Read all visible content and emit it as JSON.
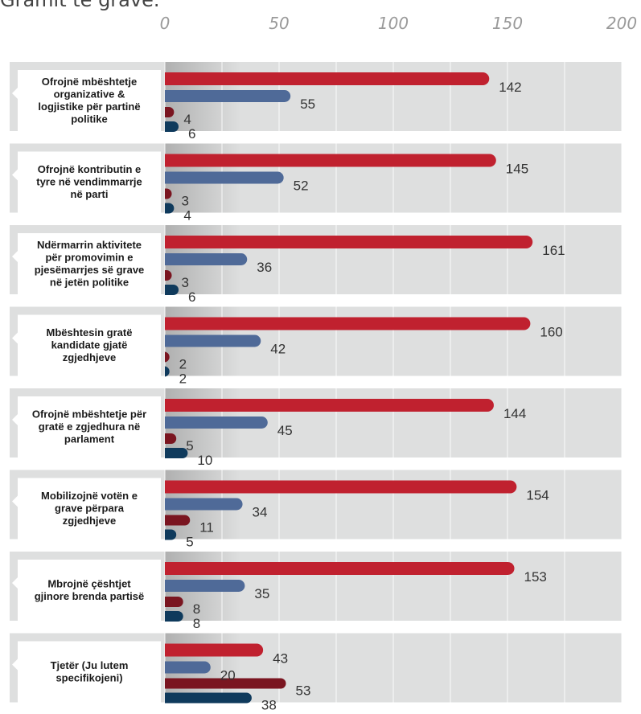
{
  "header": {
    "title_fragment": "Gramit të gravë."
  },
  "chart_data": {
    "type": "bar",
    "orientation": "horizontal",
    "xlim": [
      0,
      200
    ],
    "xticks": [
      0,
      50,
      100,
      150,
      200
    ],
    "categories": [
      [
        "Ofrojnë mbështetje",
        "organizative &",
        "logjistike për partinë",
        "politike"
      ],
      [
        "Ofrojnë kontributin e",
        "tyre në vendimmarrje",
        "në parti"
      ],
      [
        "Ndërmarrin aktivitete",
        "për promovimin e",
        "pjesëmarrjes së grave",
        "në jetën politike"
      ],
      [
        "Mbështesin gratë",
        "kandidate gjatë",
        "zgjedhjeve"
      ],
      [
        "Ofrojnë mbështetje për",
        "gratë e zgjedhura në",
        "parlament"
      ],
      [
        "Mobilizojnë votën e",
        "grave përpara",
        "zgjedhjeve"
      ],
      [
        "Mbrojnë çështjet",
        "gjinore brenda partisë"
      ],
      [
        "Tjetër (Ju lutem",
        "specifikojeni)"
      ]
    ],
    "series": [
      {
        "values": [
          142,
          145,
          161,
          160,
          144,
          154,
          153,
          43
        ],
        "color": "#c0212f"
      },
      {
        "values": [
          55,
          52,
          36,
          42,
          45,
          34,
          35,
          20
        ],
        "color": "#4f6a98"
      },
      {
        "values": [
          4,
          3,
          3,
          2,
          5,
          11,
          8,
          53
        ],
        "color": "#7a1520"
      },
      {
        "values": [
          6,
          4,
          6,
          2,
          10,
          5,
          8,
          38
        ],
        "color": "#0f3a5c"
      }
    ],
    "grid": true,
    "legend": "none"
  }
}
